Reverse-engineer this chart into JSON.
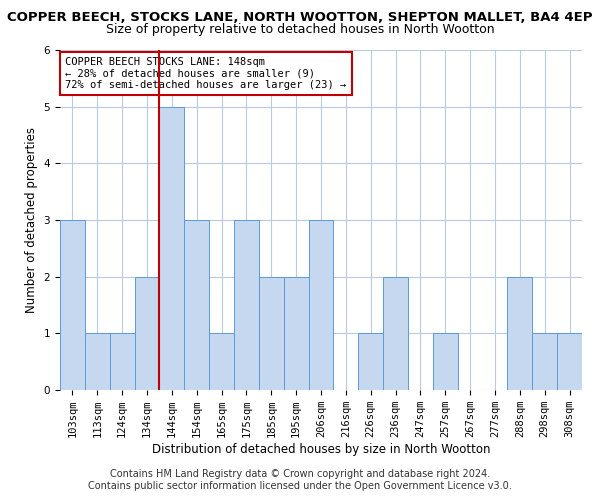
{
  "title": "COPPER BEECH, STOCKS LANE, NORTH WOOTTON, SHEPTON MALLET, BA4 4EP",
  "subtitle": "Size of property relative to detached houses in North Wootton",
  "xlabel": "Distribution of detached houses by size in North Wootton",
  "ylabel": "Number of detached properties",
  "footer_line1": "Contains HM Land Registry data © Crown copyright and database right 2024.",
  "footer_line2": "Contains public sector information licensed under the Open Government Licence v3.0.",
  "categories": [
    "103sqm",
    "113sqm",
    "124sqm",
    "134sqm",
    "144sqm",
    "154sqm",
    "165sqm",
    "175sqm",
    "185sqm",
    "195sqm",
    "206sqm",
    "216sqm",
    "226sqm",
    "236sqm",
    "247sqm",
    "257sqm",
    "267sqm",
    "277sqm",
    "288sqm",
    "298sqm",
    "308sqm"
  ],
  "values": [
    3,
    1,
    1,
    2,
    5,
    3,
    1,
    3,
    2,
    2,
    3,
    0,
    1,
    2,
    0,
    1,
    0,
    0,
    2,
    1,
    1
  ],
  "bar_color": "#c5d8f0",
  "bar_edge_color": "#5b9bd5",
  "highlight_index": 4,
  "highlight_line_color": "#c00000",
  "annotation_line1": "COPPER BEECH STOCKS LANE: 148sqm",
  "annotation_line2": "← 28% of detached houses are smaller (9)",
  "annotation_line3": "72% of semi-detached houses are larger (23) →",
  "annotation_box_edge_color": "#c00000",
  "ylim": [
    0,
    6
  ],
  "yticks": [
    0,
    1,
    2,
    3,
    4,
    5,
    6
  ],
  "bg_color": "#ffffff",
  "grid_color": "#b8c9e0",
  "title_fontsize": 9.5,
  "subtitle_fontsize": 9,
  "axis_label_fontsize": 8.5,
  "tick_fontsize": 7.5,
  "annotation_fontsize": 7.5,
  "footer_fontsize": 7
}
